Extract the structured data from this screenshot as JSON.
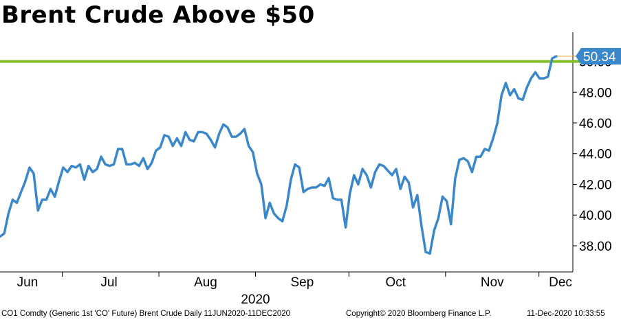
{
  "title": "Brent Crude Above $50",
  "footer": {
    "left": "CO1 Comdty (Generic 1st 'CO' Future) Brent Crude  Daily 11JUN2020-11DEC2020",
    "middle": "Copyright© 2020 Bloomberg Finance L.P.",
    "right": "11-Dec-2020 10:33:55"
  },
  "colors": {
    "line": "#3a87c9",
    "threshold": "#7dbb22",
    "label_bg": "#3a87c9"
  },
  "chart_data": {
    "type": "line",
    "title": "Brent Crude Above $50",
    "x_start": "2020-06-11",
    "x_end": "2020-12-11",
    "xlabels": [
      "Jun",
      "Jul",
      "Aug",
      "Sep",
      "Oct",
      "Nov",
      "Dec"
    ],
    "year_label": "2020",
    "y_ticks": [
      "38.00",
      "40.00",
      "42.00",
      "44.00",
      "46.00",
      "48.00",
      "50.00"
    ],
    "ylim": [
      36.3,
      51.9
    ],
    "y_axis_side": "right",
    "grid": false,
    "threshold": 50.0,
    "last_value": "50.34",
    "series": [
      {
        "values": [
          38.6,
          38.8,
          40.1,
          41.0,
          40.8,
          41.5,
          42.2,
          43.1,
          42.7,
          40.3,
          41.0,
          41.0,
          41.7,
          41.2,
          42.2,
          43.1,
          42.8,
          43.2,
          43.1,
          43.3,
          42.3,
          43.2,
          42.8,
          43.0,
          43.8,
          43.3,
          43.2,
          43.3,
          44.3,
          44.3,
          43.3,
          43.3,
          43.4,
          43.2,
          43.7,
          43.0,
          43.4,
          44.2,
          44.4,
          45.2,
          45.1,
          44.5,
          45.0,
          44.5,
          45.4,
          44.9,
          44.8,
          45.4,
          45.4,
          45.3,
          44.9,
          44.4,
          45.3,
          45.9,
          45.7,
          45.1,
          45.1,
          45.3,
          45.6,
          44.5,
          44.1,
          42.7,
          42.0,
          39.8,
          40.8,
          40.1,
          39.8,
          39.6,
          40.6,
          42.3,
          43.3,
          43.1,
          41.5,
          41.7,
          41.8,
          41.8,
          42.0,
          41.9,
          42.4,
          41.1,
          41.0,
          41.0,
          39.2,
          41.4,
          42.6,
          42.0,
          43.0,
          42.6,
          41.8,
          42.8,
          43.3,
          43.2,
          42.9,
          42.6,
          43.0,
          41.7,
          42.5,
          42.1,
          40.5,
          41.3,
          39.3,
          37.6,
          37.5,
          39.0,
          39.8,
          41.2,
          40.9,
          39.4,
          42.4,
          43.6,
          43.7,
          43.5,
          42.8,
          43.8,
          43.8,
          44.3,
          44.2,
          45.0,
          46.0,
          47.8,
          48.6,
          47.8,
          48.2,
          47.6,
          47.5,
          48.3,
          48.9,
          49.3,
          48.9,
          48.9,
          49.0,
          50.2,
          50.34
        ]
      }
    ]
  }
}
